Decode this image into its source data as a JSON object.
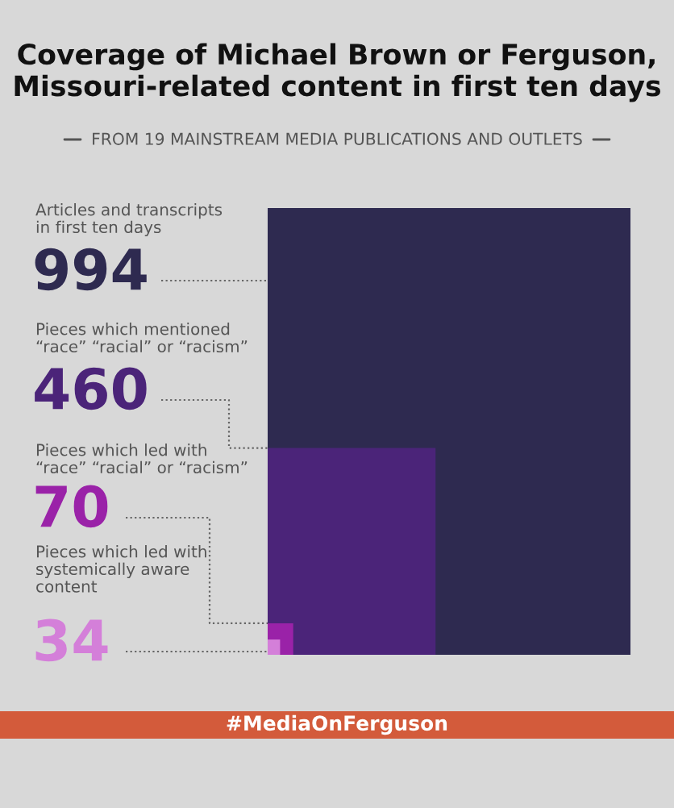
{
  "chart_data": {
    "type": "other",
    "title": "Coverage of Michael Brown or Ferguson,\nMissouri-related content in first ten days",
    "subtitle": "FROM 19 MAINSTREAM MEDIA PUBLICATIONS AND OUTLETS",
    "categories": [
      "Articles and transcripts\nin first ten days",
      "Pieces which mentioned\n“race” “racial” or “racism”",
      "Pieces which led with\n“race” “racial” or “racism”",
      "Pieces which led with\nsystemically aware\ncontent"
    ],
    "values": [
      994,
      460,
      70,
      34
    ],
    "colors": [
      "#2e2a50",
      "#4b2479",
      "#9a22a8",
      "#d47fd9"
    ],
    "data_labels": true,
    "annotations": [
      "#MediaOnFerguson"
    ]
  }
}
